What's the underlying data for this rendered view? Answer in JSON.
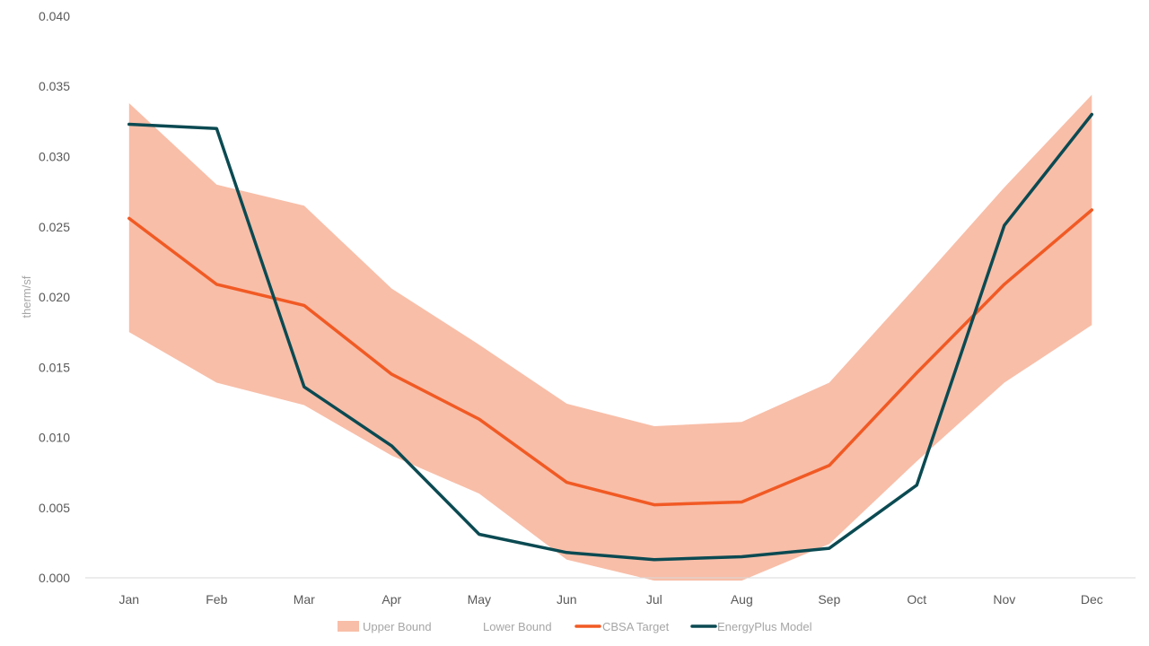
{
  "chart_data": {
    "type": "line",
    "title": "",
    "xlabel": "",
    "ylabel": "therm/sf",
    "categories": [
      "Jan",
      "Feb",
      "Mar",
      "Apr",
      "May",
      "Jun",
      "Jul",
      "Aug",
      "Sep",
      "Oct",
      "Nov",
      "Dec"
    ],
    "ylim": [
      0,
      0.04
    ],
    "yticks": [
      "0.000",
      "0.005",
      "0.010",
      "0.015",
      "0.020",
      "0.025",
      "0.030",
      "0.035",
      "0.040"
    ],
    "grid": false,
    "legend_position": "bottom",
    "band": {
      "upper_name": "Upper Bound",
      "lower_name": "Lower Bound",
      "upper": [
        0.0338,
        0.028,
        0.0265,
        0.0206,
        0.0166,
        0.0124,
        0.0108,
        0.0111,
        0.0139,
        0.0208,
        0.0278,
        0.0344
      ],
      "lower": [
        0.0175,
        0.0139,
        0.0123,
        0.0087,
        0.006,
        0.0013,
        -0.0002,
        -0.0002,
        0.0024,
        0.0083,
        0.0139,
        0.018
      ],
      "color": "#f8bea8"
    },
    "series": [
      {
        "name": "CBSA Target",
        "color": "#f15a24",
        "values": [
          0.0256,
          0.0209,
          0.0194,
          0.0145,
          0.0113,
          0.0068,
          0.0052,
          0.0054,
          0.008,
          0.0146,
          0.0209,
          0.0262
        ]
      },
      {
        "name": "EnergyPlus Model",
        "color": "#0b4a52",
        "values": [
          0.0323,
          0.032,
          0.0136,
          0.0094,
          0.0031,
          0.0018,
          0.0013,
          0.0015,
          0.0021,
          0.0066,
          0.0251,
          0.033
        ]
      }
    ]
  }
}
